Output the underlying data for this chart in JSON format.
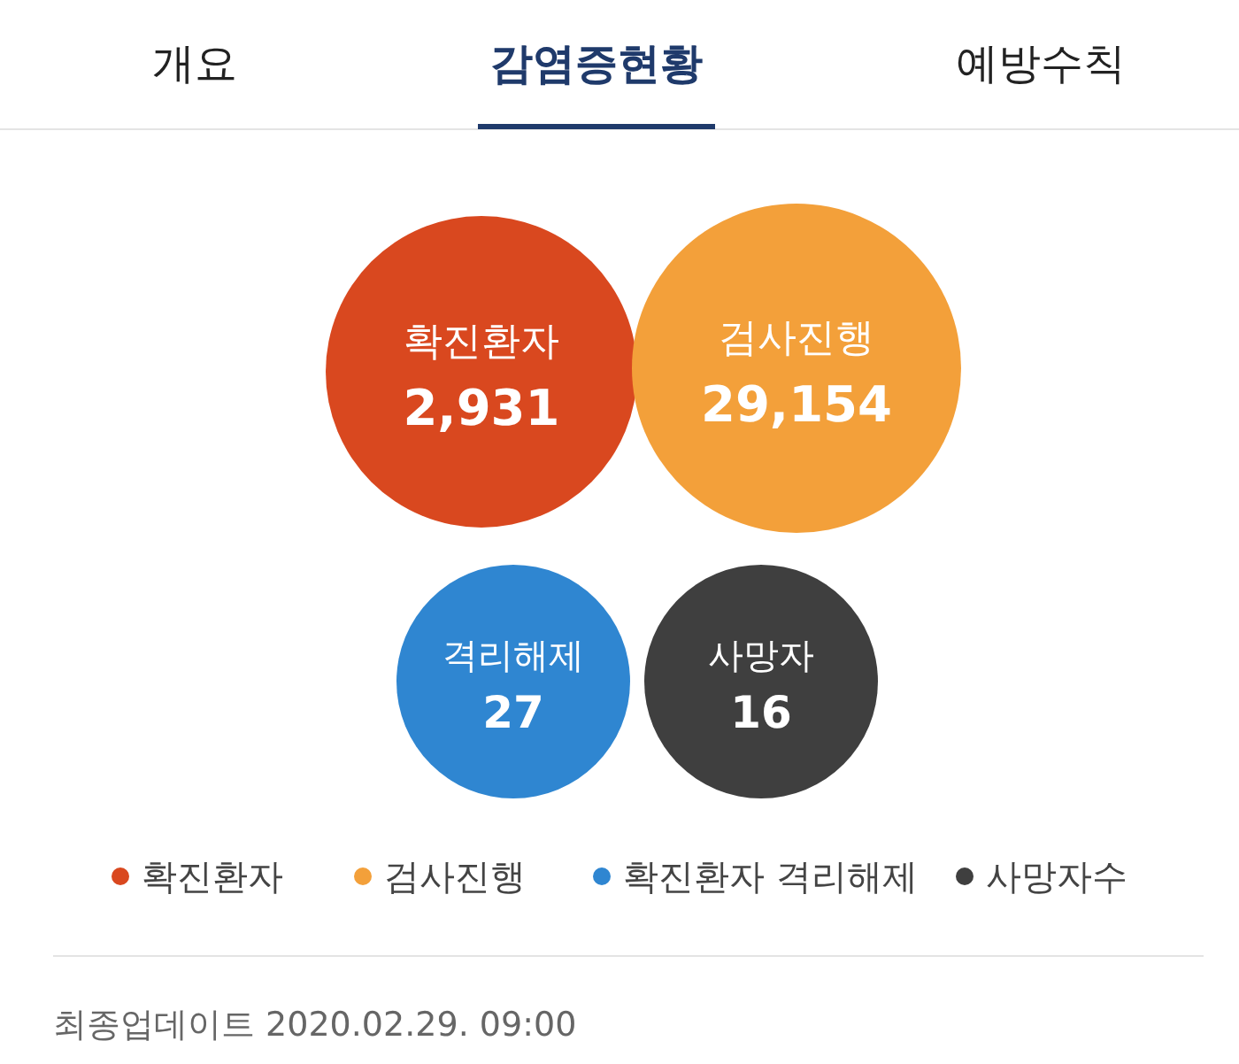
{
  "chart_data": {
    "type": "other",
    "categories": [
      "확진환자",
      "검사진행",
      "격리해제",
      "사망자"
    ],
    "series": [
      {
        "name": "확진환자",
        "color": "#d9481f",
        "values": [
          2931,
          null,
          null,
          null
        ],
        "value_labels": [
          "2,931",
          null,
          null,
          null
        ]
      },
      {
        "name": "검사진행",
        "color": "#f3a03a",
        "values": [
          null,
          29154,
          null,
          null
        ],
        "value_labels": [
          null,
          "29,154",
          null,
          null
        ]
      },
      {
        "name": "확진환자 격리해제",
        "color": "#2f86d1",
        "values": [
          null,
          null,
          27,
          null
        ],
        "value_labels": [
          null,
          null,
          "27",
          null
        ]
      },
      {
        "name": "사망자수",
        "color": "#3f3f3f",
        "values": [
          null,
          null,
          null,
          16
        ],
        "value_labels": [
          null,
          null,
          null,
          "16"
        ]
      }
    ],
    "legend": "bottom",
    "annotations": [
      "개요",
      "감염증현황",
      "예방수칙",
      "최종업데이트 2020.02.29. 09:00"
    ]
  }
}
